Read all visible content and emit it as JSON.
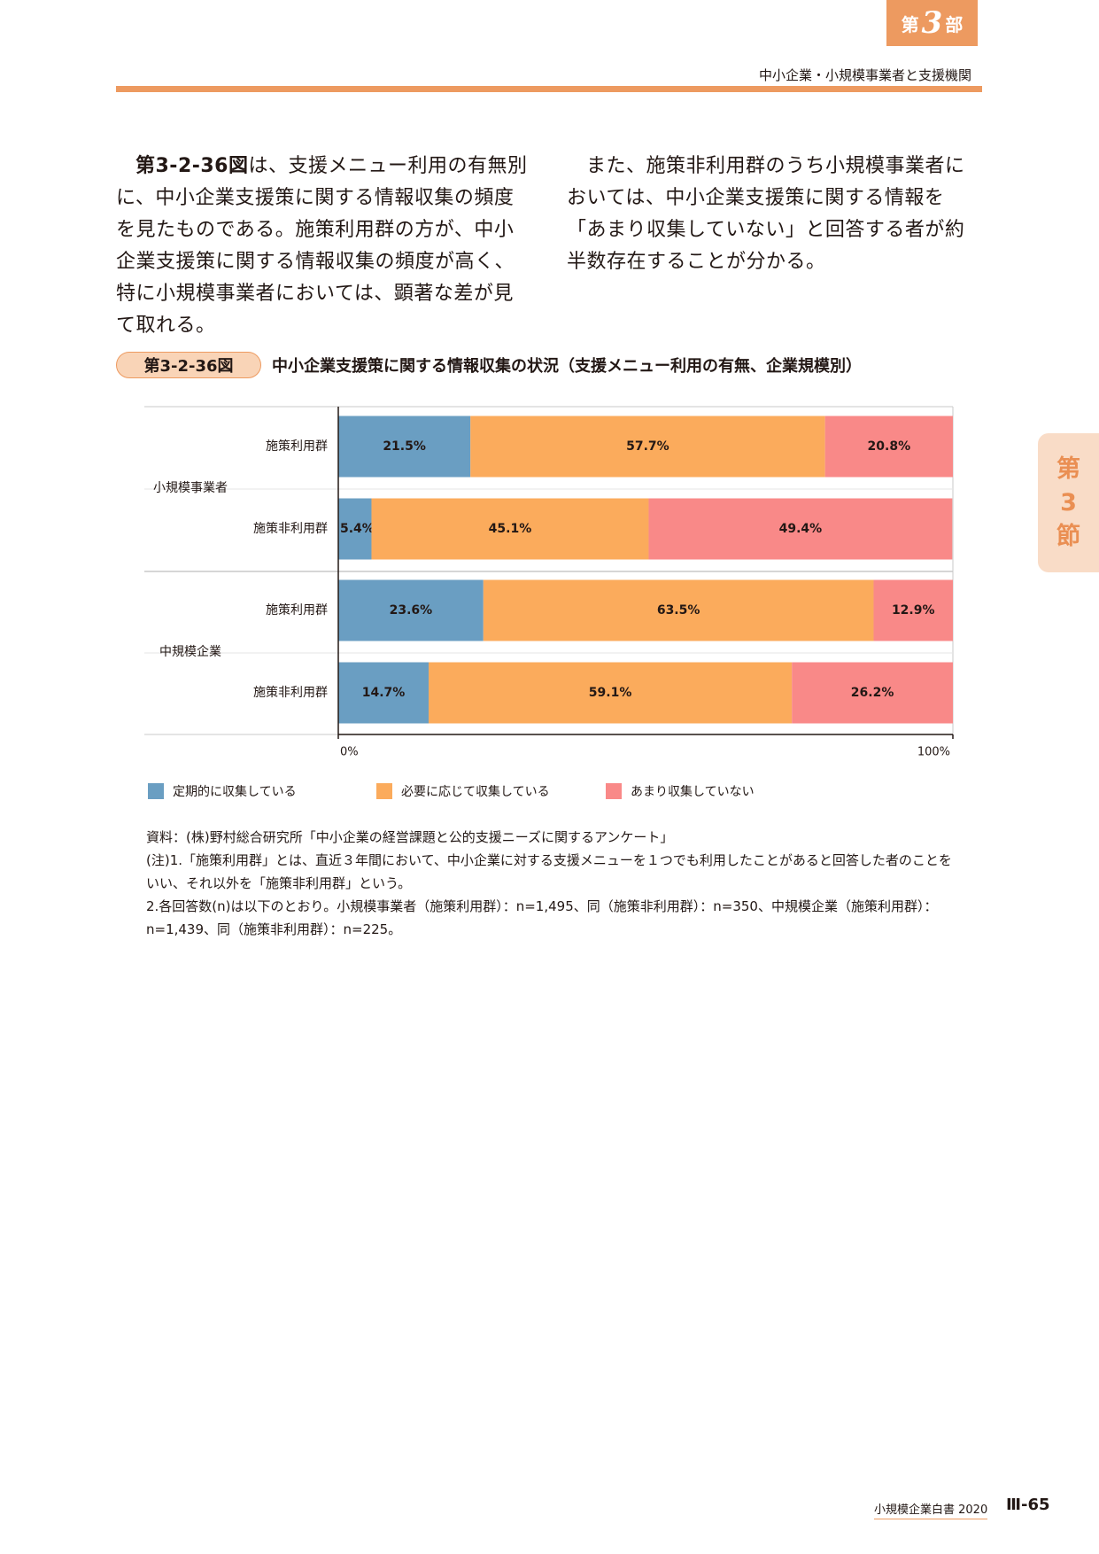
{
  "header": {
    "part_prefix": "第",
    "part_number": "3",
    "part_suffix": "部",
    "section_text": "中小企業・小規模事業者と支援機関"
  },
  "side_tab": {
    "line1": "第",
    "line2": "3",
    "line3": "節"
  },
  "body": {
    "col1_ref": "第3-2-36図",
    "col1_text": "は、支援メニュー利用の有無別に、中小企業支援策に関する情報収集の頻度を見たものである。施策利用群の方が、中小企業支援策に関する情報収集の頻度が高く、特に小規模事業者においては、顕著な差が見て取れる。",
    "col2_text": "また、施策非利用群のうち小規模事業者においては、中小企業支援策に関する情報を「あまり収集していない」と回答する者が約半数存在することが分かる。"
  },
  "figure": {
    "number": "第3-2-36図",
    "title": "中小企業支援策に関する情報収集の状況（支援メニュー利用の有無、企業規模別）"
  },
  "chart_data": {
    "type": "bar",
    "orientation": "horizontal",
    "stacked": "percent",
    "groups": [
      {
        "label": "小規模事業者",
        "rows": [
          "施策利用群",
          "施策非利用群"
        ]
      },
      {
        "label": "中規模企業",
        "rows": [
          "施策利用群",
          "施策非利用群"
        ]
      }
    ],
    "categories": [
      "施策利用群",
      "施策非利用群",
      "施策利用群",
      "施策非利用群"
    ],
    "series": [
      {
        "name": "定期的に収集している",
        "color": "#6a9ec2",
        "values": [
          21.5,
          5.4,
          23.6,
          14.7
        ],
        "labels": [
          "21.5%",
          "5.4%",
          "23.6%",
          "14.7%"
        ]
      },
      {
        "name": "必要に応じて収集している",
        "color": "#fbab5c",
        "values": [
          57.7,
          45.1,
          63.5,
          59.1
        ],
        "labels": [
          "57.7%",
          "45.1%",
          "63.5%",
          "59.1%"
        ]
      },
      {
        "name": "あまり収集していない",
        "color": "#f98988",
        "values": [
          20.8,
          49.4,
          12.9,
          26.2
        ],
        "labels": [
          "20.8%",
          "49.4%",
          "12.9%",
          "26.2%"
        ]
      }
    ],
    "xlim": [
      0,
      100
    ],
    "x_ticks": [
      "0%",
      "100%"
    ],
    "legend_position": "bottom-left"
  },
  "notes": {
    "source": "資料：(株)野村総合研究所「中小企業の経営課題と公的支援ニーズに関するアンケート」",
    "note1": "(注)1.「施策利用群」とは、直近３年間において、中小企業に対する支援メニューを１つでも利用したことがあると回答した者のことをいい、それ以外を「施策非利用群」という。",
    "note2": "2.各回答数(n)は以下のとおり。小規模事業者（施策利用群）：n=1,495、同（施策非利用群）：n=350、中規模企業（施策利用群）：n=1,439、同（施策非利用群）：n=225。"
  },
  "footer": {
    "book_title": "小規模企業白書 2020",
    "page": "Ⅲ-65"
  }
}
